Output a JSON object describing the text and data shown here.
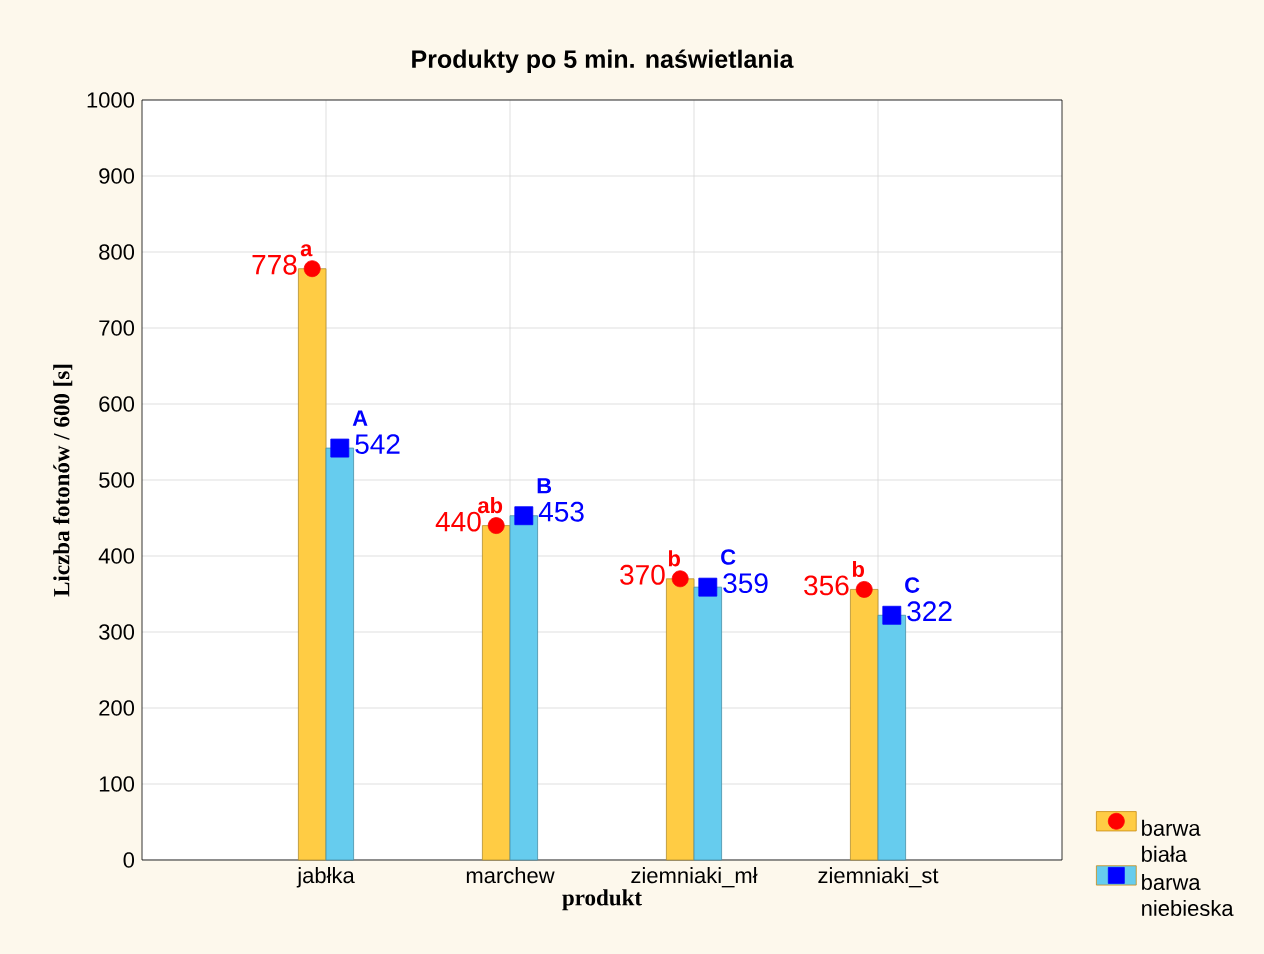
{
  "chart_data": {
    "type": "bar",
    "title": "Produkty po 5 min. naświetlania",
    "xlabel": "produkt",
    "ylabel": "Liczba fotonów / 600 [s]",
    "categories": [
      "jabłka",
      "marchew",
      "ziemniaki_mł",
      "ziemniaki_st"
    ],
    "series": [
      {
        "name": "barwa biała",
        "color": "#ffcc44",
        "values": [
          778,
          440,
          370,
          356
        ]
      },
      {
        "name": "barwa niebieska",
        "color": "#66ccee",
        "values": [
          542,
          453,
          359,
          322
        ]
      },
      {
        "type": "scatter",
        "color": "#ff0000",
        "marker": "circle",
        "values": [
          778,
          440,
          370,
          356
        ],
        "value_labels": [
          "778",
          "440",
          "370",
          "356"
        ]
      },
      {
        "type": "scatter",
        "color": "#0000ff",
        "marker": "square",
        "values": [
          542,
          453,
          359,
          322
        ],
        "value_labels": [
          "542",
          "453",
          "359",
          "322"
        ]
      }
    ],
    "ylim": [
      0,
      1000
    ],
    "yticks": [
      0,
      100,
      200,
      300,
      400,
      500,
      600,
      700,
      800,
      900,
      1000
    ],
    "grid": true,
    "legend": "bottom right",
    "annotations": [
      {
        "text": "a",
        "x": "jabłka",
        "y": 778
      },
      {
        "text": "A",
        "x": "jabłka",
        "y": 542
      },
      {
        "text": "ab",
        "x": "marchew",
        "y": 440
      },
      {
        "text": "B",
        "x": "marchew",
        "y": 453
      },
      {
        "text": "b",
        "x": "ziemniaki_mł",
        "y": 370
      },
      {
        "text": "C",
        "x": "ziemniaki_mł",
        "y": 359
      },
      {
        "text": "b",
        "x": "ziemniaki_st",
        "y": 356
      },
      {
        "text": "C",
        "x": "ziemniaki_st",
        "y": 322
      }
    ]
  }
}
